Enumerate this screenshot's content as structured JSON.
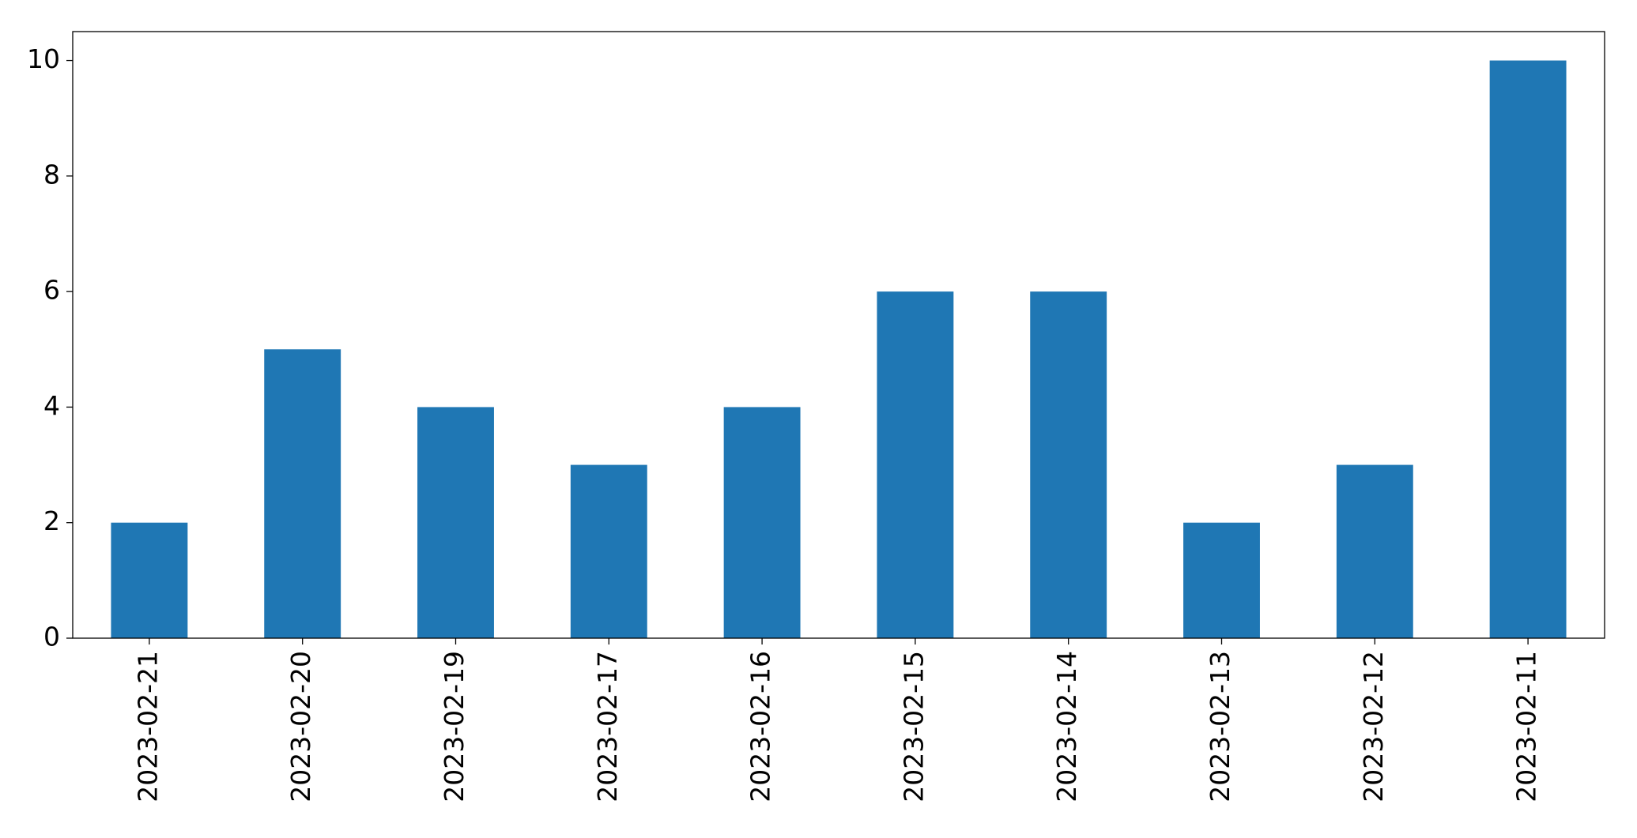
{
  "chart_data": {
    "type": "bar",
    "categories": [
      "2023-02-21",
      "2023-02-20",
      "2023-02-19",
      "2023-02-17",
      "2023-02-16",
      "2023-02-15",
      "2023-02-14",
      "2023-02-13",
      "2023-02-12",
      "2023-02-11"
    ],
    "values": [
      2,
      5,
      4,
      3,
      4,
      6,
      6,
      2,
      3,
      10
    ],
    "color": "#1f77b4",
    "ylim": [
      0,
      10.5
    ],
    "yticks": [
      0,
      2,
      4,
      6,
      8,
      10
    ],
    "grid": false
  }
}
